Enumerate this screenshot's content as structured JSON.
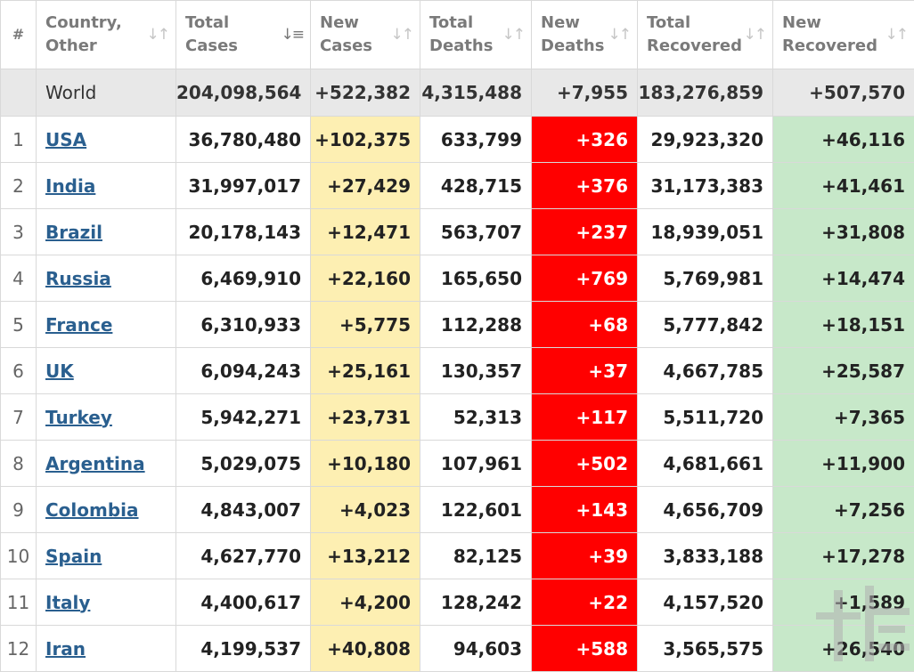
{
  "headers": {
    "index": "#",
    "country": "Country, Other",
    "total_cases": "Total Cases",
    "new_cases": "New Cases",
    "total_deaths": "Total Deaths",
    "new_deaths": "New Deaths",
    "total_recovered": "Total Recovered",
    "new_recovered": "New Recovered"
  },
  "icons": {
    "sort": "sort-arrows-icon",
    "sort_active": "sort-desc-icon"
  },
  "colors": {
    "new_cases_bg": "#fdefb2",
    "new_deaths_bg": "#ff0000",
    "new_recovered_bg": "#c7e8c9",
    "link": "#2a5f8f"
  },
  "world": {
    "country": "World",
    "total_cases": "204,098,564",
    "new_cases": "+522,382",
    "total_deaths": "4,315,488",
    "new_deaths": "+7,955",
    "total_recovered": "183,276,859",
    "new_recovered": "+507,570"
  },
  "rows": [
    {
      "idx": "1",
      "country": "USA",
      "total_cases": "36,780,480",
      "new_cases": "+102,375",
      "total_deaths": "633,799",
      "new_deaths": "+326",
      "total_recovered": "29,923,320",
      "new_recovered": "+46,116"
    },
    {
      "idx": "2",
      "country": "India",
      "total_cases": "31,997,017",
      "new_cases": "+27,429",
      "total_deaths": "428,715",
      "new_deaths": "+376",
      "total_recovered": "31,173,383",
      "new_recovered": "+41,461"
    },
    {
      "idx": "3",
      "country": "Brazil",
      "total_cases": "20,178,143",
      "new_cases": "+12,471",
      "total_deaths": "563,707",
      "new_deaths": "+237",
      "total_recovered": "18,939,051",
      "new_recovered": "+31,808"
    },
    {
      "idx": "4",
      "country": "Russia",
      "total_cases": "6,469,910",
      "new_cases": "+22,160",
      "total_deaths": "165,650",
      "new_deaths": "+769",
      "total_recovered": "5,769,981",
      "new_recovered": "+14,474"
    },
    {
      "idx": "5",
      "country": "France",
      "total_cases": "6,310,933",
      "new_cases": "+5,775",
      "total_deaths": "112,288",
      "new_deaths": "+68",
      "total_recovered": "5,777,842",
      "new_recovered": "+18,151"
    },
    {
      "idx": "6",
      "country": "UK",
      "total_cases": "6,094,243",
      "new_cases": "+25,161",
      "total_deaths": "130,357",
      "new_deaths": "+37",
      "total_recovered": "4,667,785",
      "new_recovered": "+25,587"
    },
    {
      "idx": "7",
      "country": "Turkey",
      "total_cases": "5,942,271",
      "new_cases": "+23,731",
      "total_deaths": "52,313",
      "new_deaths": "+117",
      "total_recovered": "5,511,720",
      "new_recovered": "+7,365"
    },
    {
      "idx": "8",
      "country": "Argentina",
      "total_cases": "5,029,075",
      "new_cases": "+10,180",
      "total_deaths": "107,961",
      "new_deaths": "+502",
      "total_recovered": "4,681,661",
      "new_recovered": "+11,900"
    },
    {
      "idx": "9",
      "country": "Colombia",
      "total_cases": "4,843,007",
      "new_cases": "+4,023",
      "total_deaths": "122,601",
      "new_deaths": "+143",
      "total_recovered": "4,656,709",
      "new_recovered": "+7,256"
    },
    {
      "idx": "10",
      "country": "Spain",
      "total_cases": "4,627,770",
      "new_cases": "+13,212",
      "total_deaths": "82,125",
      "new_deaths": "+39",
      "total_recovered": "3,833,188",
      "new_recovered": "+17,278"
    },
    {
      "idx": "11",
      "country": "Italy",
      "total_cases": "4,400,617",
      "new_cases": "+4,200",
      "total_deaths": "128,242",
      "new_deaths": "+22",
      "total_recovered": "4,157,520",
      "new_recovered": "+1,589"
    },
    {
      "idx": "12",
      "country": "Iran",
      "total_cases": "4,199,537",
      "new_cases": "+40,808",
      "total_deaths": "94,603",
      "new_deaths": "+588",
      "total_recovered": "3,565,575",
      "new_recovered": "+26,540"
    }
  ]
}
